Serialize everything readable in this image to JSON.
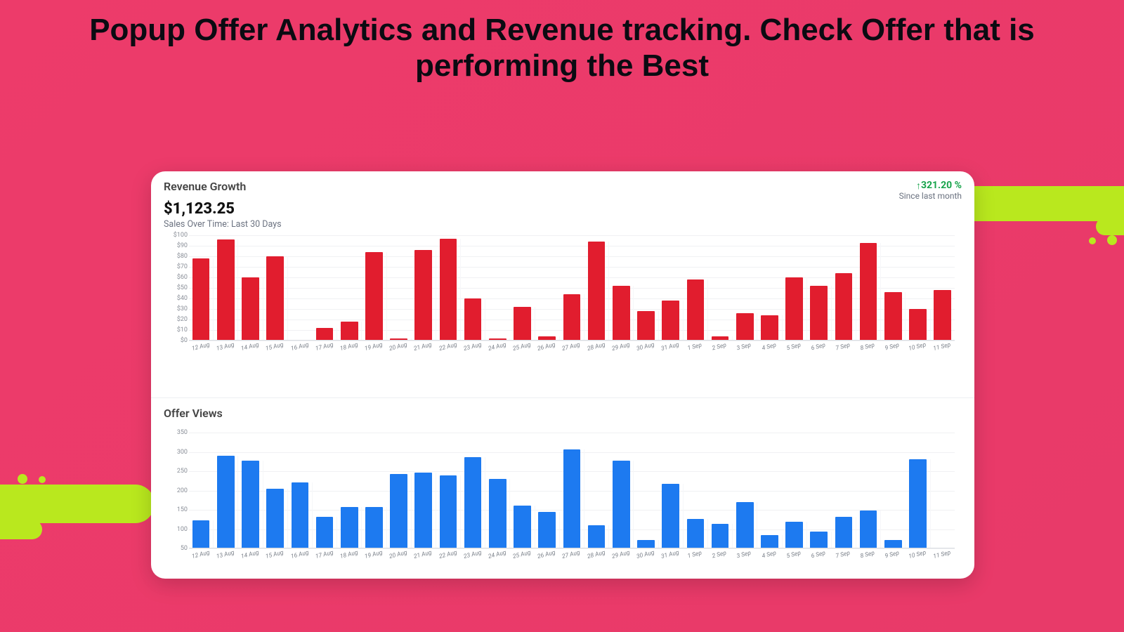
{
  "page": {
    "title": "Popup Offer Analytics and Revenue tracking. Check Offer that is performing the Best",
    "background_color": "#ec3a69",
    "accent_blob_color": "#b9e81e"
  },
  "revenue_panel": {
    "title": "Revenue Growth",
    "amount": "$1,123.25",
    "subtitle": "Sales Over Time: Last 30 Days",
    "delta_pct": "321.20 %",
    "delta_direction": "up",
    "delta_color": "#16a34a",
    "since_label": "Since last month",
    "chart": {
      "type": "bar",
      "bar_color": "#e11d2e",
      "grid_color": "#f0f1f3",
      "background_color": "#ffffff",
      "bar_width": 0.72,
      "ymin": 0,
      "ymax": 100,
      "yticks": [
        "$100",
        "$90",
        "$80",
        "$70",
        "$60",
        "$50",
        "$40",
        "$30",
        "$20",
        "$10",
        "$0"
      ],
      "categories": [
        "12 Aug",
        "13 Aug",
        "14 Aug",
        "15 Aug",
        "16 Aug",
        "17 Aug",
        "18 Aug",
        "19 Aug",
        "20 Aug",
        "21 Aug",
        "22 Aug",
        "23 Aug",
        "24 Aug",
        "25 Aug",
        "26 Aug",
        "27 Aug",
        "28 Aug",
        "29 Aug",
        "30 Aug",
        "31 Aug",
        "1 Sep",
        "2 Sep",
        "3 Sep",
        "4 Sep",
        "5 Sep",
        "6 Sep",
        "7 Sep",
        "8 Sep",
        "9 Sep",
        "10 Sep",
        "11 Sep"
      ],
      "values": [
        78,
        96,
        60,
        80,
        0,
        12,
        18,
        84,
        2,
        86,
        97,
        40,
        2,
        32,
        4,
        44,
        94,
        52,
        28,
        38,
        58,
        4,
        26,
        24,
        60,
        52,
        64,
        93,
        46,
        30,
        48
      ]
    }
  },
  "views_panel": {
    "title": "Offer Views",
    "chart": {
      "type": "bar",
      "bar_color": "#1d7af0",
      "grid_color": "#f0f1f3",
      "background_color": "#ffffff",
      "bar_width": 0.72,
      "ymin": 0,
      "ymax": 350,
      "yticks": [
        "350",
        "300",
        "250",
        "200",
        "150",
        "100",
        "50"
      ],
      "categories": [
        "12 Aug",
        "13 Aug",
        "14 Aug",
        "15 Aug",
        "16 Aug",
        "17 Aug",
        "18 Aug",
        "19 Aug",
        "20 Aug",
        "21 Aug",
        "22 Aug",
        "23 Aug",
        "24 Aug",
        "25 Aug",
        "26 Aug",
        "27 Aug",
        "28 Aug",
        "29 Aug",
        "30 Aug",
        "31 Aug",
        "1 Sep",
        "2 Sep",
        "3 Sep",
        "4 Sep",
        "5 Sep",
        "6 Sep",
        "7 Sep",
        "8 Sep",
        "9 Sep",
        "10 Sep",
        "11 Sep"
      ],
      "values": [
        85,
        280,
        265,
        180,
        200,
        95,
        125,
        125,
        225,
        230,
        220,
        275,
        210,
        130,
        110,
        300,
        70,
        265,
        25,
        195,
        90,
        75,
        140,
        40,
        80,
        50,
        95,
        115,
        25,
        270,
        0
      ]
    }
  }
}
